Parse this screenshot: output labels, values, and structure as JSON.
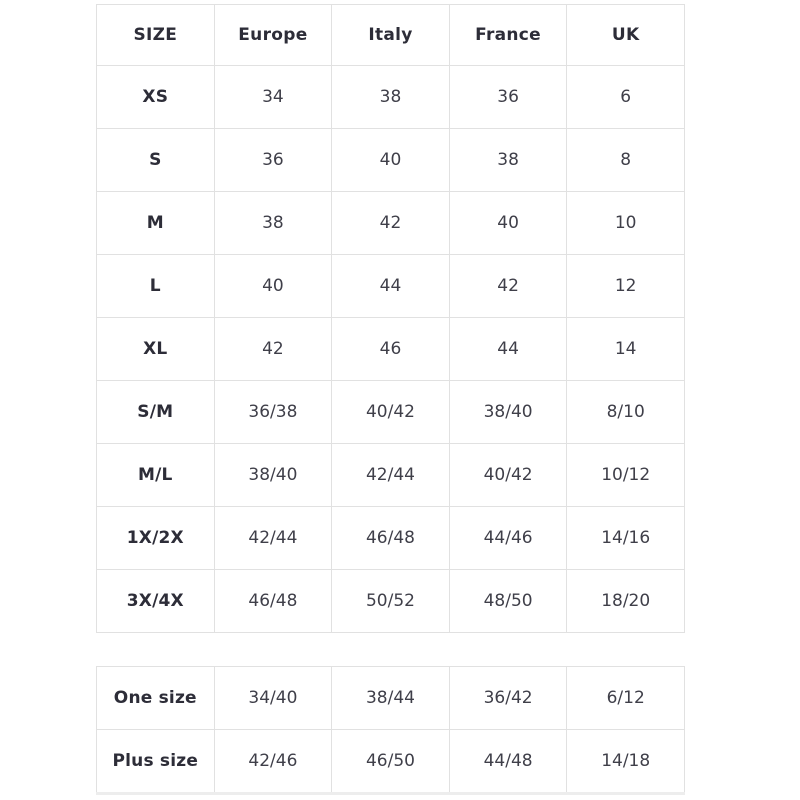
{
  "main_table": {
    "columns": [
      "SIZE",
      "Europe",
      "Italy",
      "France",
      "UK"
    ],
    "rows": [
      [
        "XS",
        "34",
        "38",
        "36",
        "6"
      ],
      [
        "S",
        "36",
        "40",
        "38",
        "8"
      ],
      [
        "M",
        "38",
        "42",
        "40",
        "10"
      ],
      [
        "L",
        "40",
        "44",
        "42",
        "12"
      ],
      [
        "XL",
        "42",
        "46",
        "44",
        "14"
      ],
      [
        "S/M",
        "36/38",
        "40/42",
        "38/40",
        "8/10"
      ],
      [
        "M/L",
        "38/40",
        "42/44",
        "40/42",
        "10/12"
      ],
      [
        "1X/2X",
        "42/44",
        "46/48",
        "44/46",
        "14/16"
      ],
      [
        "3X/4X",
        "46/48",
        "50/52",
        "48/50",
        "18/20"
      ]
    ]
  },
  "extra_table": {
    "rows": [
      [
        "One size",
        "34/40",
        "38/44",
        "36/42",
        "6/12"
      ],
      [
        "Plus size",
        "42/46",
        "46/50",
        "44/48",
        "14/18"
      ]
    ]
  },
  "colors": {
    "border": "#e1e1e1",
    "heading_text": "#2d2d38",
    "value_text": "#3f3f49",
    "background": "#ffffff"
  }
}
